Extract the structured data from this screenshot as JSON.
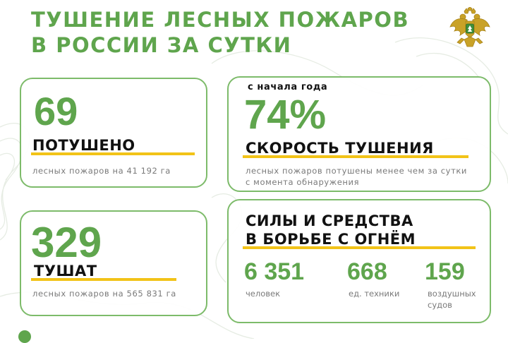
{
  "header": {
    "title_line1": "ТУШЕНИЕ ЛЕСНЫХ ПОЖАРОВ",
    "title_line2": "В РОССИИ ЗА СУТКИ"
  },
  "extinguished": {
    "value": "69",
    "label": "ПОТУШЕНО",
    "caption": "лесных пожаров на 41 192 га"
  },
  "fighting": {
    "value": "329",
    "label": "ТУШАТ",
    "caption": "лесных пожаров на 565 831 га"
  },
  "speed": {
    "kicker": "с начала года",
    "value": "74%",
    "label": "СКОРОСТЬ ТУШЕНИЯ",
    "caption_line1": "лесных пожаров потушены менее чем за сутки",
    "caption_line2": "с момента обнаружения"
  },
  "forces": {
    "title_line1": "СИЛЫ И СРЕДСТВА",
    "title_line2": "В БОРЬБЕ С ОГНЁМ",
    "items": [
      {
        "value": "6 351",
        "label_line1": "человек",
        "label_line2": ""
      },
      {
        "value": "668",
        "label_line1": "ед. техники",
        "label_line2": ""
      },
      {
        "value": "159",
        "label_line1": "воздушных",
        "label_line2": "судов"
      }
    ]
  },
  "colors": {
    "brand_green": "#5fa54d",
    "card_border": "#7dbb6a",
    "underline_yellow": "#f2c318",
    "caption_gray": "#7a7a7a"
  },
  "icons": {
    "emblem": "double-headed-eagle-emblem-icon"
  }
}
